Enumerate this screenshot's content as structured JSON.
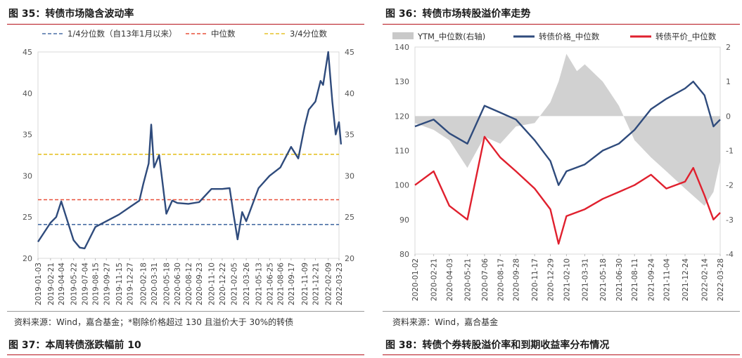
{
  "figures": [
    {
      "heading": "图 35：转债市场隐含波动率",
      "source": "资料来源：Wind，嘉合基金；*剔除价格超过 130 且溢价大于 30%的转债",
      "chart_data": {
        "type": "line",
        "legend_position": "top",
        "grid": false,
        "x_ticks": [
          "2019-01-03",
          "2019-02-21",
          "2019-04-04",
          "2019-05-22",
          "2019-07-04",
          "2019-08-15",
          "2019-09-27",
          "2019-11-15",
          "2019-12-27",
          "2020-02-18",
          "2020-03-31",
          "2020-05-18",
          "2020-06-30",
          "2020-08-12",
          "2020-09-23",
          "2020-11-10",
          "2020-12-22",
          "2021-02-05",
          "2021-03-26",
          "2021-05-13",
          "2021-06-25",
          "2021-08-06",
          "2021-09-17",
          "2021-11-09",
          "2021-12-21",
          "2022-02-09",
          "2022-03-23"
        ],
        "ylim_left": [
          20,
          45
        ],
        "ylim_right": [
          20,
          45
        ],
        "y_ticks_left": [
          20,
          25,
          30,
          35,
          40,
          45
        ],
        "y_ticks_right": [
          20,
          25,
          30,
          35,
          40,
          45
        ],
        "reference_lines": [
          {
            "name": "1/4分位数（自13年1月以来）",
            "value": 24.1,
            "color": "#4a6fa5",
            "style": "dashed"
          },
          {
            "name": "中位数",
            "value": 27.1,
            "color": "#e8503a",
            "style": "dashed"
          },
          {
            "name": "3/4分位数",
            "value": 32.6,
            "color": "#e6c229",
            "style": "dashed"
          }
        ],
        "series": [
          {
            "color": "#2f4b7c",
            "x": [
              "2019-01-03",
              "2019-02-21",
              "2019-03-15",
              "2019-04-04",
              "2019-04-20",
              "2019-05-22",
              "2019-06-15",
              "2019-07-04",
              "2019-08-15",
              "2019-09-27",
              "2019-11-15",
              "2019-12-27",
              "2020-02-03",
              "2020-02-18",
              "2020-03-10",
              "2020-03-20",
              "2020-03-31",
              "2020-04-20",
              "2020-05-18",
              "2020-06-10",
              "2020-06-30",
              "2020-08-12",
              "2020-09-23",
              "2020-11-10",
              "2020-12-22",
              "2021-01-20",
              "2021-02-05",
              "2021-02-20",
              "2021-03-10",
              "2021-03-26",
              "2021-05-13",
              "2021-06-25",
              "2021-08-06",
              "2021-09-17",
              "2021-10-15",
              "2021-11-09",
              "2021-11-25",
              "2021-12-21",
              "2022-01-10",
              "2022-01-20",
              "2022-02-09",
              "2022-02-25",
              "2022-03-10",
              "2022-03-23",
              "2022-03-31"
            ],
            "values": [
              22.0,
              24.3,
              25.0,
              26.9,
              25.3,
              22.2,
              21.3,
              21.2,
              23.8,
              24.5,
              25.3,
              26.2,
              27.0,
              29.0,
              31.5,
              36.2,
              31.0,
              32.5,
              25.4,
              27.0,
              26.7,
              26.6,
              26.8,
              28.4,
              28.4,
              28.5,
              25.2,
              22.3,
              25.6,
              24.5,
              28.5,
              30.0,
              31.0,
              33.5,
              32.1,
              36.0,
              38.0,
              39.0,
              41.5,
              41.0,
              45.0,
              39.0,
              35.0,
              36.5,
              33.8
            ]
          }
        ]
      }
    },
    {
      "heading": "图 36：转债市场转股溢价率走势",
      "source": "资料来源：Wind，嘉合基金",
      "chart_data": {
        "type": "line",
        "legend_position": "top",
        "grid": false,
        "x_ticks": [
          "2020-01-02",
          "2020-02-21",
          "2020-04-03",
          "2020-05-21",
          "2020-07-06",
          "2020-08-17",
          "2020-09-28",
          "2020-11-17",
          "2020-12-29",
          "2021-02-10",
          "2021-03-31",
          "2021-05-18",
          "2021-06-30",
          "2021-08-11",
          "2021-09-24",
          "2021-11-04",
          "2021-12-24",
          "2022-02-14",
          "2022-03-28"
        ],
        "ylim_left": [
          80,
          140
        ],
        "ylim_right": [
          -4,
          2
        ],
        "y_ticks_left": [
          80,
          90,
          100,
          110,
          120,
          130,
          140
        ],
        "y_ticks_right": [
          -4,
          -3,
          -2,
          -1,
          0,
          1,
          2
        ],
        "series": [
          {
            "name": "YTM_中位数(右轴)",
            "type": "area",
            "axis": "right",
            "color": "#c9c9c9",
            "x": [
              "2020-01-02",
              "2020-02-21",
              "2020-04-03",
              "2020-05-21",
              "2020-07-06",
              "2020-08-17",
              "2020-09-28",
              "2020-11-17",
              "2020-12-29",
              "2021-01-20",
              "2021-02-10",
              "2021-03-10",
              "2021-03-31",
              "2021-05-18",
              "2021-06-30",
              "2021-08-11",
              "2021-09-24",
              "2021-11-04",
              "2021-12-24",
              "2022-02-14",
              "2022-03-10",
              "2022-03-28"
            ],
            "values": [
              -0.2,
              -0.4,
              -0.7,
              -1.5,
              -0.6,
              -0.8,
              -0.3,
              -0.2,
              0.4,
              1.0,
              1.8,
              1.3,
              1.5,
              1.0,
              0.3,
              -0.7,
              -1.2,
              -1.6,
              -2.1,
              -2.6,
              -2.2,
              -1.3
            ]
          },
          {
            "name": "转债价格_中位数",
            "type": "line",
            "axis": "left",
            "color": "#2f4b7c",
            "x": [
              "2020-01-02",
              "2020-02-21",
              "2020-04-03",
              "2020-05-21",
              "2020-07-06",
              "2020-08-17",
              "2020-09-28",
              "2020-11-17",
              "2020-12-29",
              "2021-01-20",
              "2021-02-10",
              "2021-03-31",
              "2021-05-18",
              "2021-06-30",
              "2021-08-11",
              "2021-09-24",
              "2021-11-04",
              "2021-12-24",
              "2022-01-15",
              "2022-02-14",
              "2022-03-10",
              "2022-03-28"
            ],
            "values": [
              117,
              119,
              115,
              112,
              123,
              121,
              119,
              113,
              107,
              100,
              104,
              106,
              110,
              112,
              116,
              122,
              125,
              128,
              130,
              126,
              117,
              119
            ]
          },
          {
            "name": "转债平价_中位数",
            "type": "line",
            "axis": "left",
            "color": "#e0202e",
            "x": [
              "2020-01-02",
              "2020-02-21",
              "2020-04-03",
              "2020-05-21",
              "2020-07-06",
              "2020-08-17",
              "2020-09-28",
              "2020-11-17",
              "2020-12-29",
              "2021-01-20",
              "2021-02-10",
              "2021-03-31",
              "2021-05-18",
              "2021-06-30",
              "2021-08-11",
              "2021-09-24",
              "2021-11-04",
              "2021-12-24",
              "2022-01-15",
              "2022-02-14",
              "2022-03-10",
              "2022-03-28"
            ],
            "values": [
              100,
              104,
              94,
              90,
              114,
              108,
              104,
              99,
              93,
              83,
              91,
              93,
              96,
              98,
              100,
              103,
              99,
              101,
              105,
              97,
              90,
              92
            ]
          }
        ]
      }
    },
    {
      "heading": "图 37：本周转债涨跌幅前 10"
    },
    {
      "heading": "图 38：转债个券转股溢价率和到期收益率分布情况"
    }
  ]
}
